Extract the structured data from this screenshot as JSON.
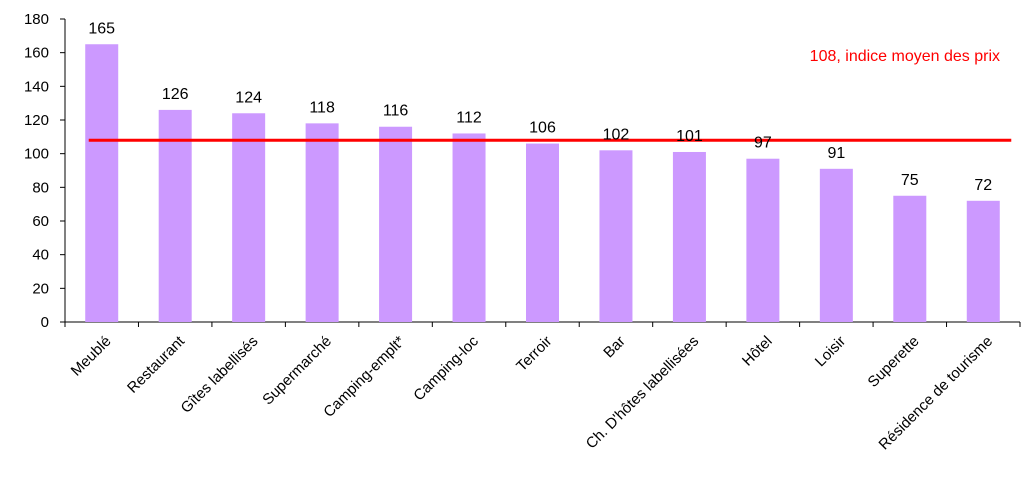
{
  "chart_data": {
    "type": "bar",
    "categories": [
      "Meublé",
      "Restaurant",
      "Gîtes labellisés",
      "Supermarché",
      "Camping-emplt*",
      "Camping-loc",
      "Terroir",
      "Bar",
      "Ch. D'hôtes labellisées",
      "Hôtel",
      "Loisir",
      "Superette",
      "Résidence de tourisme"
    ],
    "values": [
      165,
      126,
      124,
      118,
      116,
      112,
      106,
      102,
      101,
      97,
      91,
      75,
      72
    ],
    "data_labels": [
      "165",
      "126",
      "124",
      "118",
      "116",
      "112",
      "106",
      "102",
      "101",
      "97",
      "91",
      "75",
      "72"
    ],
    "yticks": [
      "0",
      "20",
      "40",
      "60",
      "80",
      "100",
      "120",
      "140",
      "160",
      "180"
    ],
    "ylim": [
      0,
      180
    ],
    "bar_color": "#cc99ff",
    "reference_line": {
      "value": 108,
      "label": "108, indice moyen des prix",
      "color": "#ff0000"
    },
    "title": "",
    "xlabel": "",
    "ylabel": "",
    "grid": false,
    "legend": "none"
  }
}
